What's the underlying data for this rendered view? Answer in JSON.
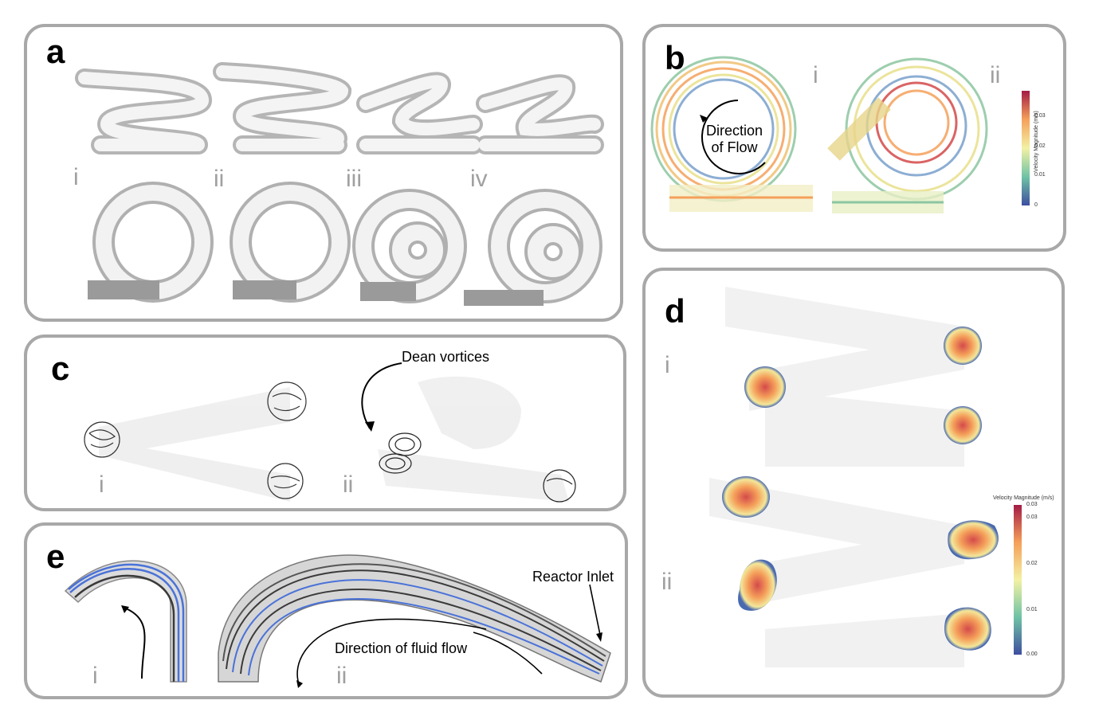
{
  "panels": {
    "a": {
      "label": "a",
      "subs": [
        "i",
        "ii",
        "iii",
        "iv"
      ]
    },
    "b": {
      "label": "b",
      "subs": [
        "i",
        "ii"
      ],
      "direction_text": "Direction\nof Flow",
      "colorbar": {
        "title": "Velocity Magnitude (m/s)",
        "ticks": [
          "0.03",
          "0.02",
          "0.01",
          "0"
        ]
      }
    },
    "c": {
      "label": "c",
      "subs": [
        "i",
        "ii"
      ],
      "annotation": "Dean vortices"
    },
    "d": {
      "label": "d",
      "subs": [
        "i",
        "ii"
      ],
      "colorbar": {
        "title": "Velocity Magnitude  (m/s)",
        "ticks": [
          "0.03",
          "0.03",
          "0.02",
          "0.01",
          "0.00"
        ]
      }
    },
    "e": {
      "label": "e",
      "subs": [
        "i",
        "ii"
      ],
      "inlet_text": "Reactor Inlet",
      "flow_text": "Direction of fluid flow"
    }
  },
  "colors": {
    "panel_border": "#a8a8a8",
    "roman": "#a0a0a0",
    "streamline_blue": "#4a72d8",
    "streamline_dark": "#3a3a3a",
    "tube_white": "#eeeeee"
  }
}
